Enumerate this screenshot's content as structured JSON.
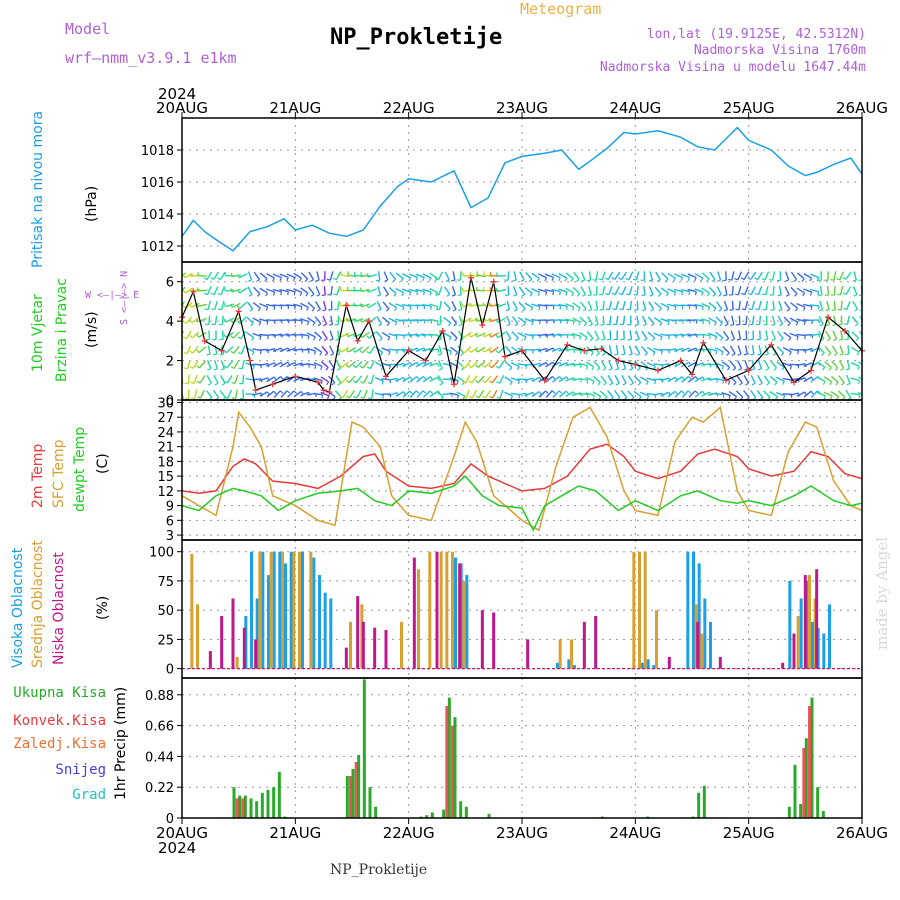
{
  "header": {
    "model_label": "Model",
    "model_name": "wrf—nmm_v3.9.1  e1km",
    "meteogram_label": "Meteogram",
    "station_title": "NP_Prokletije",
    "coords": "lon,lat (19.9125E, 42.5312N)",
    "elevation": "Nadmorska Visina 1760m",
    "model_elevation": "Nadmorska Visina u modelu 1647.44m",
    "year": "2024",
    "footer_station": "NP_Prokletije",
    "watermark": "made by Angel"
  },
  "colors": {
    "purple": "#b060d8",
    "orange": "#f0b040",
    "pressure": "#1aa0e8",
    "temp2m": "#e83a3a",
    "sfc": "#d9a030",
    "dewpt": "#22cc22",
    "high_cloud": "#1aa0e8",
    "mid_cloud": "#d9a030",
    "low_cloud": "#c0188a",
    "precip_total": "#2aaa2a",
    "precip_conv": "#e83a3a",
    "precip_frz": "#f07030",
    "precip_snow": "#4040e0",
    "precip_hail": "#20c0c0"
  },
  "x_ticks": [
    "20AUG",
    "21AUG",
    "22AUG",
    "23AUG",
    "24AUG",
    "25AUG",
    "26AUG"
  ],
  "panels": {
    "pressure": {
      "label": "Pritisak na nivou mora",
      "unit": "(hPa)",
      "yticks": [
        "1012",
        "1014",
        "1016",
        "1018"
      ]
    },
    "wind": {
      "label1": "10m Vjetar",
      "label2": "Brzina i Pravac",
      "unit": "(m/s)",
      "compass": "W  <—|—>  E",
      "compass_v": "S <—|—> N",
      "yticks": [
        "0",
        "2",
        "4",
        "6"
      ]
    },
    "temp": {
      "label1": "2m Temp",
      "label2": "SFC Temp",
      "label3": "dewpt Temp",
      "unit": "(C)",
      "yticks": [
        "3",
        "6",
        "9",
        "12",
        "15",
        "18",
        "21",
        "24",
        "27",
        "30"
      ]
    },
    "cloud": {
      "label1": "Visoka Oblacnost",
      "label2": "Srednja Oblacnost",
      "label3": "Niska Oblacnost",
      "unit": "(%)",
      "yticks": [
        "0",
        "25",
        "50",
        "75",
        "100"
      ]
    },
    "precip": {
      "legend": [
        "Ukupna Kisa",
        "Konvek.Kisa",
        "Zaledj.Kisa",
        "Snijeg",
        "Grad"
      ],
      "label": "1hr Precip",
      "unit": "(mm)",
      "yticks": [
        "0",
        "0.22",
        "0.44",
        "0.66",
        "0.88"
      ]
    }
  },
  "chart_data": [
    {
      "type": "line",
      "name": "pressure",
      "x_unit": "days since 20AUG 00UTC",
      "ylim": [
        1011,
        1020
      ],
      "x": [
        0,
        0.1,
        0.2,
        0.3,
        0.45,
        0.6,
        0.75,
        0.9,
        1.0,
        1.15,
        1.3,
        1.45,
        1.6,
        1.75,
        1.9,
        2.0,
        2.2,
        2.4,
        2.55,
        2.7,
        2.85,
        3.0,
        3.2,
        3.35,
        3.5,
        3.6,
        3.75,
        3.9,
        4.0,
        4.2,
        4.4,
        4.55,
        4.7,
        4.9,
        5.0,
        5.2,
        5.35,
        5.5,
        5.6,
        5.75,
        5.9,
        6.0
      ],
      "y": [
        1012.6,
        1013.6,
        1012.9,
        1012.4,
        1011.7,
        1012.9,
        1013.2,
        1013.7,
        1013.0,
        1013.3,
        1012.8,
        1012.6,
        1013.0,
        1014.5,
        1015.7,
        1016.2,
        1016.0,
        1016.7,
        1014.4,
        1015.0,
        1017.2,
        1017.6,
        1017.8,
        1018.0,
        1016.8,
        1017.3,
        1018.1,
        1019.1,
        1019.0,
        1019.2,
        1018.8,
        1018.2,
        1018.0,
        1019.4,
        1018.6,
        1018.0,
        1017.0,
        1016.4,
        1016.6,
        1017.1,
        1017.5,
        1016.5
      ]
    },
    {
      "type": "line",
      "name": "wind_speed",
      "x_unit": "days since 20AUG 00UTC",
      "ylim": [
        0,
        7
      ],
      "x": [
        0,
        0.1,
        0.2,
        0.35,
        0.5,
        0.6,
        0.65,
        0.8,
        1.0,
        1.2,
        1.25,
        1.3,
        1.45,
        1.55,
        1.65,
        1.8,
        2.0,
        2.15,
        2.3,
        2.4,
        2.55,
        2.65,
        2.75,
        2.85,
        3.0,
        3.2,
        3.4,
        3.55,
        3.7,
        3.85,
        4.0,
        4.2,
        4.4,
        4.5,
        4.6,
        4.8,
        5.0,
        5.2,
        5.4,
        5.55,
        5.7,
        5.85,
        6.0
      ],
      "y": [
        4.2,
        5.5,
        3.0,
        2.5,
        4.5,
        2.0,
        0.5,
        0.8,
        1.2,
        0.9,
        0.5,
        0.4,
        4.8,
        3.0,
        4.0,
        1.2,
        2.5,
        2.0,
        3.5,
        0.8,
        6.2,
        3.8,
        6.0,
        2.2,
        2.5,
        1.0,
        2.8,
        2.5,
        2.6,
        2.0,
        1.8,
        1.5,
        2.0,
        1.3,
        2.9,
        1.0,
        1.5,
        2.8,
        0.9,
        1.5,
        4.2,
        3.5,
        2.5
      ]
    },
    {
      "type": "line",
      "ylim": [
        2,
        30.5
      ],
      "x_unit": "days since 20AUG 00UTC",
      "series": [
        {
          "name": "2m Temp",
          "x": [
            0,
            0.15,
            0.3,
            0.45,
            0.55,
            0.65,
            0.8,
            1.0,
            1.2,
            1.4,
            1.6,
            1.7,
            1.8,
            2.0,
            2.2,
            2.4,
            2.55,
            2.7,
            2.9,
            3.0,
            3.2,
            3.4,
            3.6,
            3.75,
            3.9,
            4.0,
            4.2,
            4.4,
            4.55,
            4.7,
            4.9,
            5.0,
            5.2,
            5.4,
            5.55,
            5.7,
            5.85,
            6.0
          ],
          "y": [
            12,
            11.5,
            12,
            17,
            18.5,
            17.5,
            14,
            13.5,
            12.5,
            15,
            19,
            19.5,
            16,
            13,
            12.5,
            13.5,
            17.5,
            15,
            13,
            12,
            12.5,
            15,
            20.5,
            21.5,
            19,
            16,
            14.5,
            16,
            19.5,
            20.5,
            19,
            16.5,
            15,
            16,
            20,
            19,
            15.5,
            14.5
          ]
        },
        {
          "name": "SFC Temp",
          "x": [
            0,
            0.15,
            0.3,
            0.45,
            0.5,
            0.6,
            0.7,
            0.8,
            1.0,
            1.2,
            1.35,
            1.5,
            1.6,
            1.75,
            1.85,
            2.0,
            2.2,
            2.4,
            2.5,
            2.6,
            2.75,
            2.9,
            3.0,
            3.15,
            3.3,
            3.45,
            3.6,
            3.75,
            3.9,
            4.0,
            4.2,
            4.35,
            4.5,
            4.6,
            4.75,
            4.9,
            5.0,
            5.2,
            5.35,
            5.5,
            5.6,
            5.75,
            5.9,
            6.0
          ],
          "y": [
            11,
            9,
            7,
            21,
            28,
            25,
            21,
            11,
            9,
            6,
            5,
            26,
            25,
            21,
            11,
            7,
            6,
            19,
            26,
            22,
            11,
            8,
            6,
            4,
            17,
            27,
            29,
            23,
            12,
            8,
            7,
            22,
            27,
            26,
            29,
            12,
            8,
            7,
            20,
            26,
            25,
            14,
            9,
            8
          ]
        },
        {
          "name": "dewpt Temp",
          "x": [
            0,
            0.15,
            0.3,
            0.45,
            0.55,
            0.7,
            0.85,
            1.0,
            1.2,
            1.4,
            1.55,
            1.7,
            1.85,
            2.0,
            2.2,
            2.4,
            2.5,
            2.65,
            2.8,
            3.0,
            3.1,
            3.2,
            3.35,
            3.5,
            3.65,
            3.85,
            4.0,
            4.2,
            4.4,
            4.55,
            4.75,
            4.9,
            5.0,
            5.2,
            5.4,
            5.55,
            5.75,
            5.9,
            6.0
          ],
          "y": [
            9,
            8,
            11,
            12.5,
            12,
            11,
            8,
            10,
            11.5,
            12,
            12.5,
            10,
            9,
            12,
            11.5,
            13,
            15,
            11,
            9,
            8.5,
            4,
            9,
            11,
            13,
            12,
            8,
            10,
            8,
            11,
            12,
            10,
            9.5,
            10,
            9,
            11,
            13,
            10,
            9,
            9.5
          ]
        }
      ]
    },
    {
      "type": "bar",
      "name": "cloud_cover",
      "ylim": [
        0,
        100
      ],
      "x_unit": "days since 20AUG 00UTC",
      "series": [
        {
          "name": "Visoka Oblacnost",
          "x": [
            0.55,
            0.6,
            0.65,
            0.7,
            0.75,
            0.8,
            0.85,
            0.9,
            0.95,
            1.05,
            1.15,
            1.2,
            1.25,
            1.3,
            2.4,
            2.45,
            2.5,
            3.3,
            3.4,
            3.45,
            4.05,
            4.1,
            4.15,
            4.45,
            4.5,
            4.55,
            4.6,
            4.65,
            5.35,
            5.45,
            5.5,
            5.55,
            5.6,
            5.65,
            5.7
          ],
          "y": [
            45,
            100,
            60,
            100,
            80,
            100,
            100,
            90,
            100,
            100,
            95,
            80,
            65,
            60,
            95,
            90,
            80,
            5,
            8,
            3,
            5,
            8,
            3,
            100,
            100,
            90,
            60,
            40,
            75,
            60,
            75,
            40,
            35,
            30,
            55
          ]
        },
        {
          "name": "Srednja Oblacnost",
          "x": [
            0.1,
            0.15,
            0.5,
            0.7,
            0.8,
            0.9,
            1.0,
            1.05,
            1.15,
            1.5,
            1.6,
            1.95,
            2.1,
            2.2,
            2.3,
            2.35,
            2.4,
            2.5,
            3.35,
            3.45,
            4.0,
            4.05,
            4.1,
            4.2,
            4.55,
            4.6,
            5.45,
            5.55,
            5.6
          ],
          "y": [
            98,
            55,
            10,
            100,
            100,
            100,
            100,
            100,
            100,
            40,
            55,
            40,
            85,
            100,
            100,
            100,
            100,
            75,
            25,
            25,
            100,
            100,
            100,
            50,
            55,
            30,
            45,
            80,
            60
          ]
        },
        {
          "name": "Niska Oblacnost",
          "x": [
            0.25,
            0.35,
            0.45,
            0.55,
            0.65,
            1.45,
            1.55,
            1.6,
            1.7,
            1.8,
            2.05,
            2.25,
            2.45,
            2.65,
            2.75,
            3.05,
            3.55,
            3.65,
            4.3,
            4.55,
            4.75,
            5.3,
            5.4,
            5.5,
            5.6
          ],
          "y": [
            15,
            45,
            60,
            35,
            25,
            18,
            62,
            40,
            35,
            33,
            95,
            100,
            90,
            50,
            48,
            25,
            40,
            45,
            10,
            40,
            10,
            5,
            30,
            80,
            85
          ]
        }
      ]
    },
    {
      "type": "bar",
      "name": "precipitation",
      "ylim": [
        0,
        1.0
      ],
      "x_unit": "days since 20AUG 00UTC",
      "series": [
        {
          "name": "Ukupna Kisa",
          "x": [
            0.45,
            0.5,
            0.55,
            0.6,
            0.65,
            0.7,
            0.75,
            0.8,
            0.85,
            0.9,
            1.45,
            1.5,
            1.55,
            1.6,
            1.65,
            1.7,
            2.1,
            2.15,
            2.2,
            2.3,
            2.35,
            2.4,
            2.45,
            2.5,
            2.7,
            3.7,
            4.1,
            4.5,
            4.55,
            4.6,
            5.35,
            5.4,
            5.45,
            5.5,
            5.55,
            5.6,
            5.65
          ],
          "y": [
            0.22,
            0.16,
            0.16,
            0.14,
            0.12,
            0.18,
            0.2,
            0.22,
            0.33,
            0.01,
            0.3,
            0.35,
            0.45,
            0.99,
            0.22,
            0.08,
            0.01,
            0.02,
            0.04,
            0.06,
            0.86,
            0.72,
            0.12,
            0.08,
            0.03,
            0.01,
            0.01,
            0.01,
            0.18,
            0.23,
            0.08,
            0.38,
            0.1,
            0.57,
            0.86,
            0.22,
            0.05
          ]
        },
        {
          "name": "Konvek.Kisa",
          "x": [
            0.5,
            0.55,
            1.5,
            1.55,
            2.35,
            2.4,
            5.5,
            5.55
          ],
          "y": [
            0.14,
            0.14,
            0.3,
            0.4,
            0.8,
            0.66,
            0.5,
            0.8
          ]
        }
      ]
    }
  ]
}
